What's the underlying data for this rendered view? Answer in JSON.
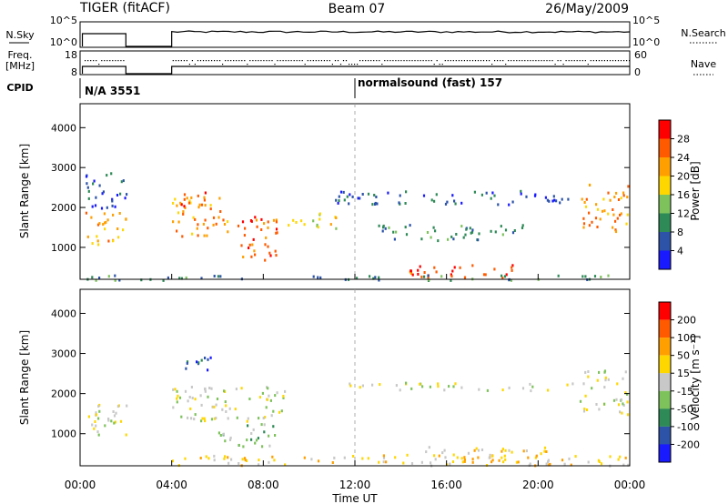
{
  "header": {
    "radar": "TIGER (fitACF)",
    "beam": "Beam 07",
    "date": "26/May/2009"
  },
  "status": {
    "nsky_label": "N.Sky",
    "nsearch_label": "N.Search",
    "freq_label_1": "Freq.",
    "freq_label_2": "[MHz]",
    "nave_label": "Nave",
    "cpid_label": "CPID",
    "nsky_ticks": [
      "10^5",
      "10^0"
    ],
    "nsearch_ticks": [
      "10^5",
      "10^0"
    ],
    "freq_ticks": [
      "18",
      "8"
    ],
    "nave_ticks": [
      "60",
      "0"
    ],
    "cpid_1": "N/A 3551",
    "cpid_2": "normalsound (fast) 157"
  },
  "chart_data": [
    {
      "type": "heatmap",
      "name": "power",
      "ylabel": "Slant Range [km]",
      "yticks": [
        "1000",
        "2000",
        "3000",
        "4000"
      ],
      "yticks_values": [
        1000,
        2000,
        3000,
        4000
      ],
      "ylim": [
        200,
        4600
      ],
      "xlim": [
        0,
        24
      ],
      "colorbar_label": "Power [dB]",
      "colorbar_ticks": [
        "4",
        "8",
        "12",
        "16",
        "20",
        "24",
        "28"
      ],
      "colorbar_colors": [
        "#1a1aff",
        "#2c53a8",
        "#2e8a57",
        "#7ec25c",
        "#ffd700",
        "#ff9f00",
        "#ff5a00",
        "#ff0000"
      ],
      "regions": [
        {
          "t0": 0.15,
          "t1": 2.0,
          "r0": 1100,
          "r1": 1900,
          "level": 5
        },
        {
          "t0": 0.15,
          "t1": 2.0,
          "r0": 2000,
          "r1": 2900,
          "level": 1
        },
        {
          "t0": 4.0,
          "t1": 6.5,
          "r0": 1300,
          "r1": 2300,
          "level": 5
        },
        {
          "t0": 4.1,
          "t1": 5.6,
          "r0": 1950,
          "r1": 2400,
          "level": 6
        },
        {
          "t0": 6.6,
          "t1": 8.6,
          "r0": 700,
          "r1": 1800,
          "level": 6
        },
        {
          "t0": 9.0,
          "t1": 11.4,
          "r0": 1500,
          "r1": 1900,
          "level": 4
        },
        {
          "t0": 11.0,
          "t1": 21.5,
          "r0": 2100,
          "r1": 2450,
          "level": 1
        },
        {
          "t0": 13.0,
          "t1": 19.5,
          "r0": 1200,
          "r1": 1600,
          "level": 2
        },
        {
          "t0": 14.0,
          "t1": 19.0,
          "r0": 250,
          "r1": 600,
          "level": 6
        },
        {
          "t0": 0.1,
          "t1": 24.0,
          "r0": 200,
          "r1": 330,
          "level": 2
        },
        {
          "t0": 21.8,
          "t1": 23.9,
          "r0": 1400,
          "r1": 2600,
          "level": 5
        }
      ]
    },
    {
      "type": "heatmap",
      "name": "velocity",
      "ylabel": "Slant Range [km]",
      "xlabel": "Time UT",
      "yticks": [
        "1000",
        "2000",
        "3000",
        "4000"
      ],
      "yticks_values": [
        1000,
        2000,
        3000,
        4000
      ],
      "ylim": [
        200,
        4600
      ],
      "xlim": [
        0,
        24
      ],
      "xticks": [
        "00:00",
        "04:00",
        "08:00",
        "12:00",
        "16:00",
        "20:00",
        "00:00"
      ],
      "xticks_values": [
        0,
        4,
        8,
        12,
        16,
        20,
        24
      ],
      "colorbar_label": "Velocity [m s⁻¹]",
      "colorbar_ticks": [
        "200",
        "100",
        "50",
        "15",
        "-15",
        "-50",
        "-100",
        "-200"
      ],
      "colorbar_colors": [
        "#1a1aff",
        "#2c53a8",
        "#2e8a57",
        "#7ec25c",
        "#c8c8c8",
        "#ffd700",
        "#ff9f00",
        "#ff5a00",
        "#ff0000"
      ],
      "regions": [
        {
          "t0": 0.15,
          "t1": 2.0,
          "r0": 1000,
          "r1": 1900,
          "level": 4
        },
        {
          "t0": 4.0,
          "t1": 9.0,
          "r0": 1300,
          "r1": 2200,
          "level": 4
        },
        {
          "t0": 6.0,
          "t1": 8.6,
          "r0": 700,
          "r1": 1300,
          "level": 3
        },
        {
          "t0": 4.2,
          "t1": 5.8,
          "r0": 2600,
          "r1": 3000,
          "level": 1
        },
        {
          "t0": 11.5,
          "t1": 21.5,
          "r0": 2100,
          "r1": 2300,
          "level": 4
        },
        {
          "t0": 4.0,
          "t1": 23.9,
          "r0": 230,
          "r1": 500,
          "level": 5
        },
        {
          "t0": 15.0,
          "t1": 20.5,
          "r0": 300,
          "r1": 700,
          "level": 5
        },
        {
          "t0": 21.8,
          "t1": 23.9,
          "r0": 1500,
          "r1": 2600,
          "level": 4
        }
      ]
    }
  ]
}
